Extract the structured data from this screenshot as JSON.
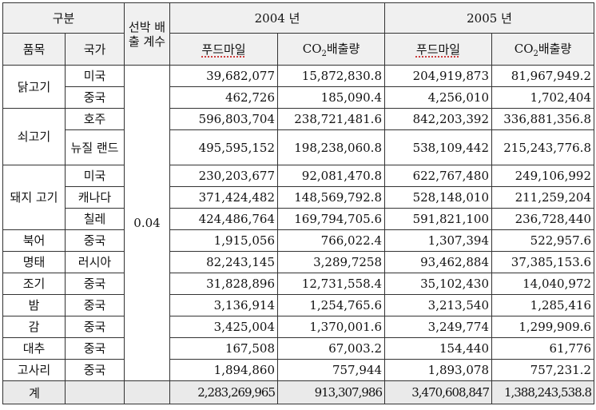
{
  "header": {
    "category": "구분",
    "coef_label": "선박 배출 계수",
    "item_label": "품목",
    "country_label": "국가",
    "years": [
      "2004 년",
      "2005 년"
    ],
    "foodmile_label": "푸드마일",
    "co2_label_prefix": "CO",
    "co2_label_sub": "2",
    "co2_label_suffix": "배출량"
  },
  "coefficient": "0.04",
  "groups": [
    {
      "item": "닭고기",
      "rows": [
        {
          "country": "미국",
          "fm2004": "39,682,077",
          "co2_2004": "15,872,830.8",
          "fm2005": "204,919,873",
          "co2_2005": "81,967,949.2"
        },
        {
          "country": "중국",
          "fm2004": "462,726",
          "co2_2004": "185,090.4",
          "fm2005": "4,256,010",
          "co2_2005": "1,702,404"
        }
      ]
    },
    {
      "item": "쇠고기",
      "rows": [
        {
          "country": "호주",
          "fm2004": "596,803,704",
          "co2_2004": "238,721,481.6",
          "fm2005": "842,203,392",
          "co2_2005": "336,881,356.8"
        },
        {
          "country": "뉴질 랜드",
          "fm2004": "495,595,152",
          "co2_2004": "198,238,060.8",
          "fm2005": "538,109,442",
          "co2_2005": "215,243,776.8"
        }
      ]
    },
    {
      "item": "돼지 고기",
      "rows": [
        {
          "country": "미국",
          "fm2004": "230,203,677",
          "co2_2004": "92,081,470.8",
          "fm2005": "622,767,480",
          "co2_2005": "249,106,992"
        },
        {
          "country": "캐나다",
          "fm2004": "371,424,482",
          "co2_2004": "148,569,792.8",
          "fm2005": "528,148,010",
          "co2_2005": "211,259,204"
        },
        {
          "country": "칠레",
          "fm2004": "424,486,764",
          "co2_2004": "169,794,705.6",
          "fm2005": "591,821,100",
          "co2_2005": "236,728,440"
        }
      ]
    },
    {
      "item": "북어",
      "rows": [
        {
          "country": "중국",
          "fm2004": "1,915,056",
          "co2_2004": "766,022.4",
          "fm2005": "1,307,394",
          "co2_2005": "522,957.6"
        }
      ]
    },
    {
      "item": "명태",
      "rows": [
        {
          "country": "러시아",
          "fm2004": "82,243,145",
          "co2_2004": "3,289,7258",
          "fm2005": "93,462,884",
          "co2_2005": "37,385,153.6"
        }
      ]
    },
    {
      "item": "조기",
      "rows": [
        {
          "country": "중국",
          "fm2004": "31,828,896",
          "co2_2004": "12,731,558.4",
          "fm2005": "35,102,430",
          "co2_2005": "14,040,972"
        }
      ]
    },
    {
      "item": "밤",
      "rows": [
        {
          "country": "중국",
          "fm2004": "3,136,914",
          "co2_2004": "1,254,765.6",
          "fm2005": "3,213,540",
          "co2_2005": "1,285,416"
        }
      ]
    },
    {
      "item": "감",
      "rows": [
        {
          "country": "중국",
          "fm2004": "3,425,004",
          "co2_2004": "1,370,001.6",
          "fm2005": "3,249,774",
          "co2_2005": "1,299,909.6"
        }
      ]
    },
    {
      "item": "대추",
      "rows": [
        {
          "country": "중국",
          "fm2004": "167,508",
          "co2_2004": "67,003.2",
          "fm2005": "154,440",
          "co2_2005": "61,776"
        }
      ]
    },
    {
      "item": "고사리",
      "rows": [
        {
          "country": "중국",
          "fm2004": "1,894,860",
          "co2_2004": "757,944",
          "fm2005": "1,893,078",
          "co2_2005": "757,231.2"
        }
      ]
    }
  ],
  "total": {
    "label": "계",
    "fm2004": "2,283,269,965",
    "co2_2004": "913,307,986",
    "fm2005": "3,470,608,847",
    "co2_2005": "1,388,243,538.8"
  }
}
